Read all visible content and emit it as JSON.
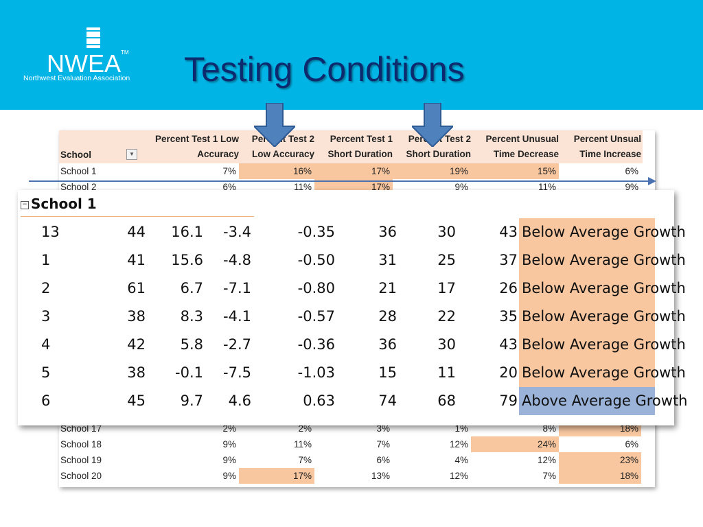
{
  "header": {
    "logo_name": "NWEA",
    "logo_tm": "TM",
    "logo_subtitle": "Northwest Evaluation Association",
    "title": "Testing Conditions"
  },
  "colors": {
    "banner": "#00b4e6",
    "highlight": "#f8c7a0",
    "above": "#9bb3d8",
    "arrow": "#4a72b0"
  },
  "table": {
    "school_header": "School",
    "columns": [
      "Percent Test 1 Low Accuracy",
      "Percent Test 2 Low Accuracy",
      "Percent Test 1 Short Duration",
      "Percent Test 2 Short Duration",
      "Percent Unusual Time Decrease",
      "Percent Unsual Time Increase"
    ],
    "rows_top": [
      {
        "school": "School 1",
        "values": [
          "7%",
          "16%",
          "17%",
          "19%",
          "15%",
          "6%"
        ],
        "hl": [
          false,
          true,
          true,
          true,
          true,
          false
        ]
      },
      {
        "school": "School 2",
        "values": [
          "6%",
          "11%",
          "17%",
          "9%",
          "11%",
          "9%"
        ],
        "hl": [
          false,
          false,
          true,
          false,
          false,
          false
        ]
      }
    ],
    "rows_bottom": [
      {
        "school": "School 17",
        "values": [
          "2%",
          "2%",
          "3%",
          "1%",
          "8%",
          "18%"
        ],
        "hl": [
          false,
          false,
          false,
          false,
          false,
          true
        ]
      },
      {
        "school": "School 18",
        "values": [
          "9%",
          "11%",
          "7%",
          "12%",
          "24%",
          "6%"
        ],
        "hl": [
          false,
          false,
          false,
          false,
          true,
          false
        ]
      },
      {
        "school": "School 19",
        "values": [
          "9%",
          "7%",
          "6%",
          "4%",
          "12%",
          "23%"
        ],
        "hl": [
          false,
          false,
          false,
          false,
          false,
          true
        ]
      },
      {
        "school": "School 20",
        "values": [
          "9%",
          "17%",
          "13%",
          "12%",
          "7%",
          "18%"
        ],
        "hl": [
          false,
          true,
          false,
          false,
          false,
          true
        ]
      }
    ]
  },
  "popup": {
    "title": "School 1",
    "rows": [
      {
        "c": [
          "13",
          "44",
          "16.1",
          "-3.4",
          "-0.35",
          "36",
          "30",
          "43"
        ],
        "growth": "Below Average Growth",
        "above": false
      },
      {
        "c": [
          "1",
          "41",
          "15.6",
          "-4.8",
          "-0.50",
          "31",
          "25",
          "37"
        ],
        "growth": "Below Average Growth",
        "above": false
      },
      {
        "c": [
          "2",
          "61",
          "6.7",
          "-7.1",
          "-0.80",
          "21",
          "17",
          "26"
        ],
        "growth": "Below Average Growth",
        "above": false
      },
      {
        "c": [
          "3",
          "38",
          "8.3",
          "-4.1",
          "-0.57",
          "28",
          "22",
          "35"
        ],
        "growth": "Below Average Growth",
        "above": false
      },
      {
        "c": [
          "4",
          "42",
          "5.8",
          "-2.7",
          "-0.36",
          "36",
          "30",
          "43"
        ],
        "growth": "Below Average Growth",
        "above": false
      },
      {
        "c": [
          "5",
          "38",
          "-0.1",
          "-7.5",
          "-1.03",
          "15",
          "11",
          "20"
        ],
        "growth": "Below Average Growth",
        "above": false
      },
      {
        "c": [
          "6",
          "45",
          "9.7",
          "4.6",
          "0.63",
          "74",
          "68",
          "79"
        ],
        "growth": "Above Average Growth",
        "above": true
      }
    ]
  }
}
